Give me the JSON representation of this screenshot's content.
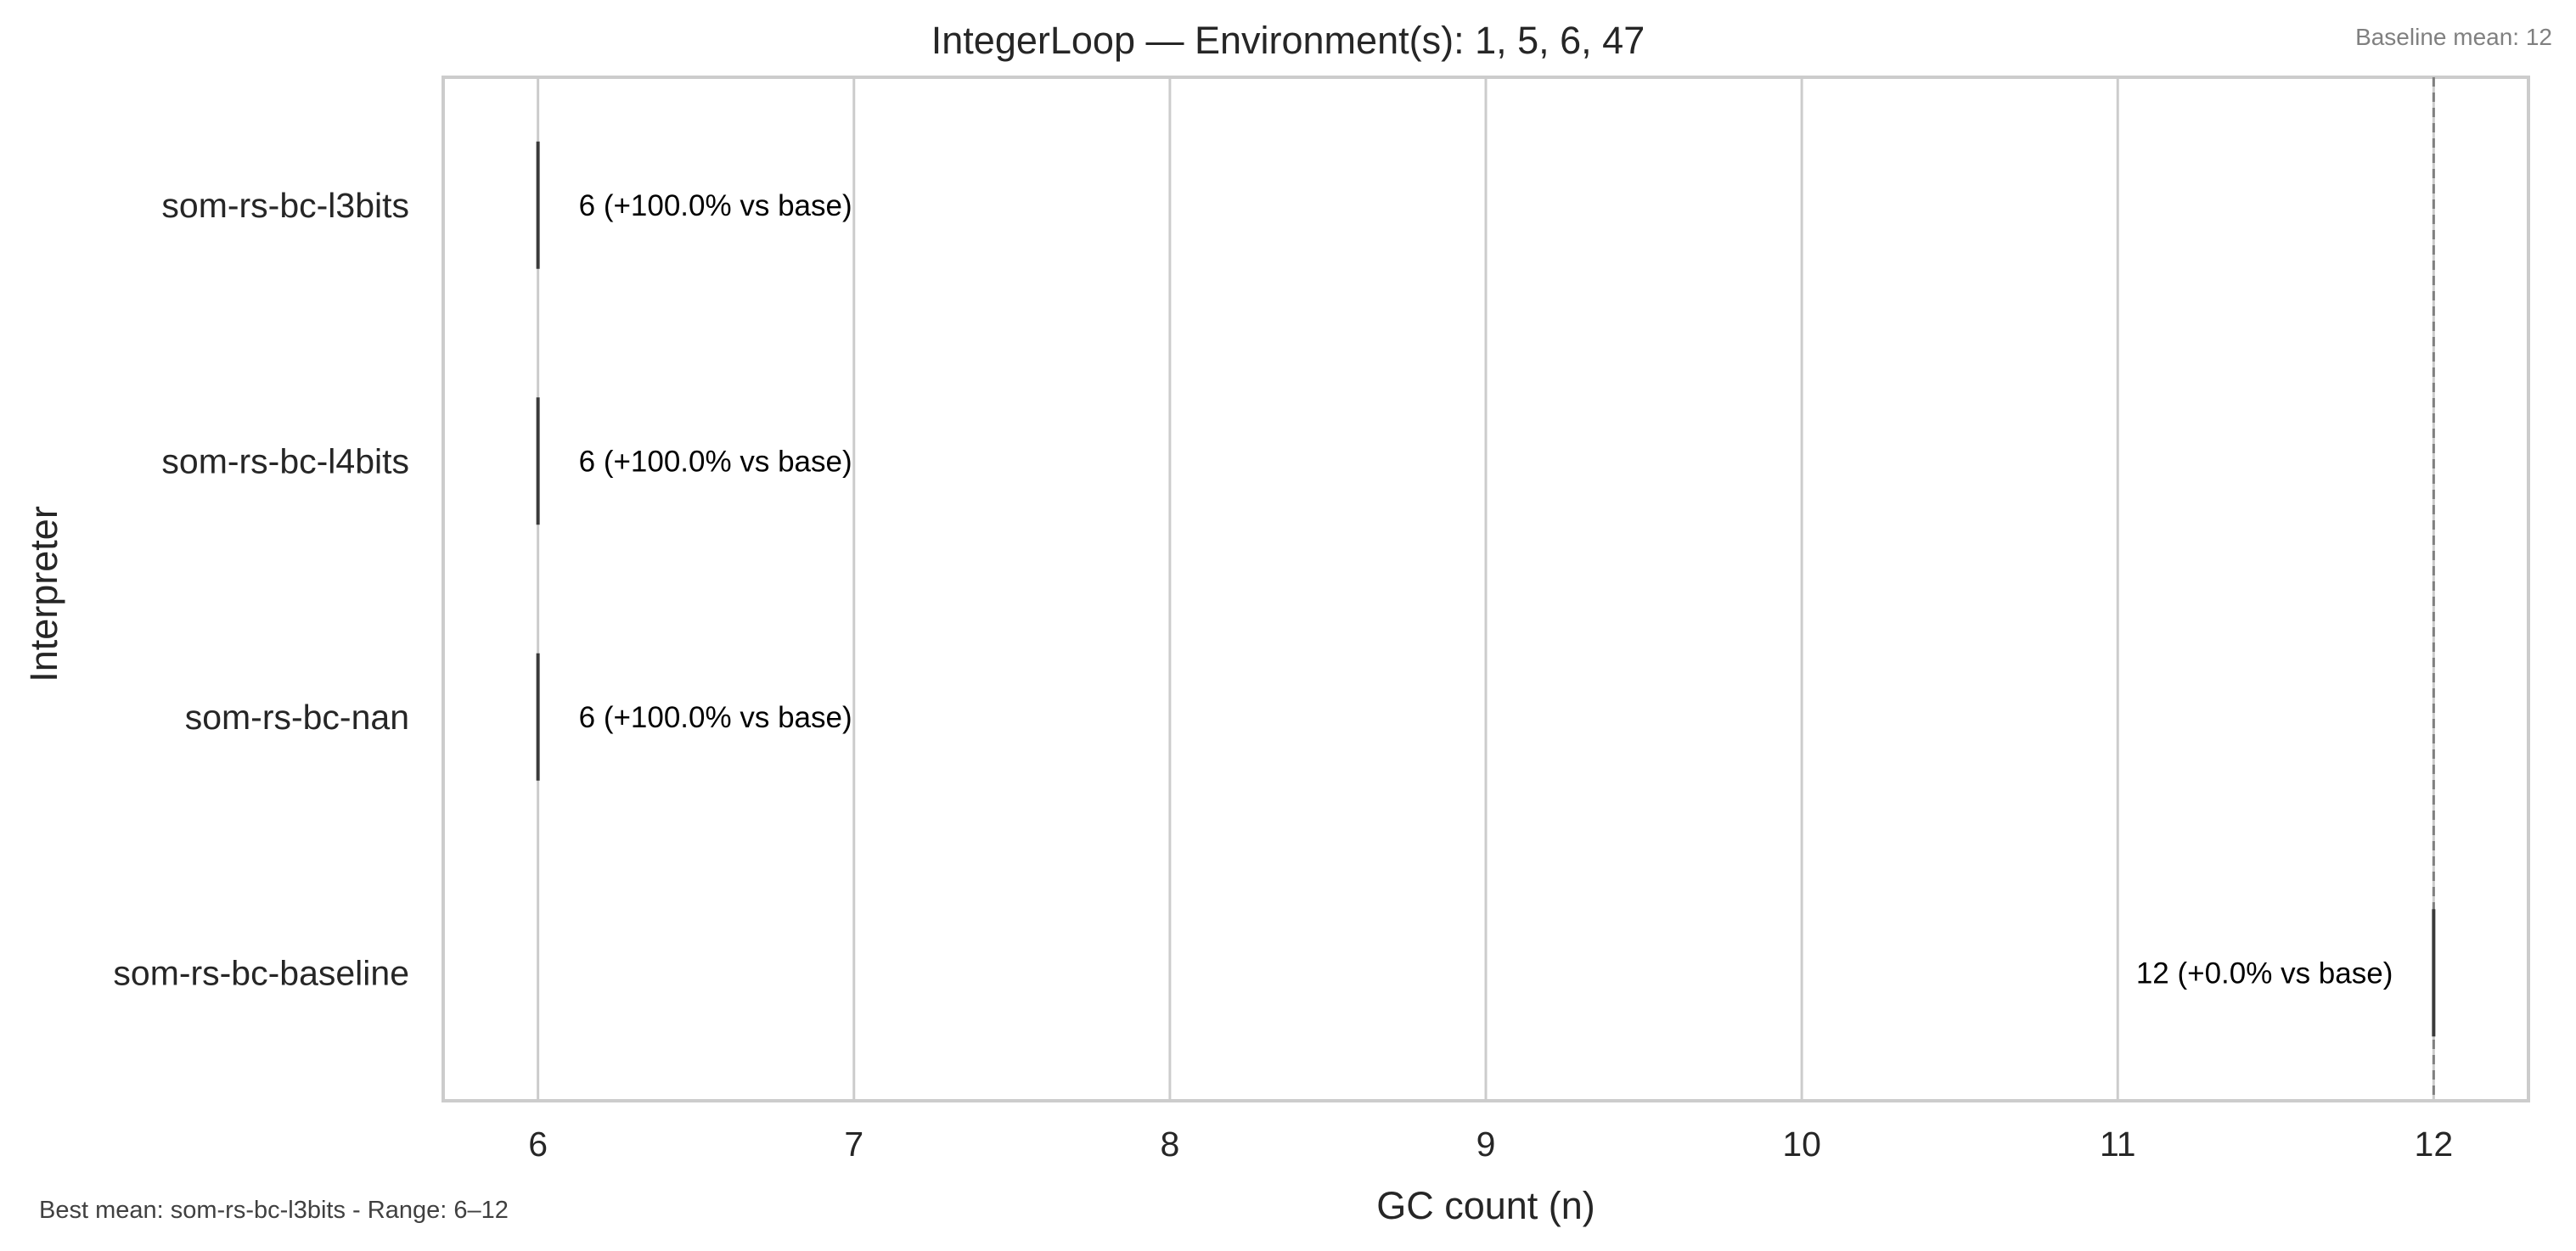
{
  "chart_data": {
    "type": "bar",
    "title": "IntegerLoop — Environment(s): 1, 5, 6, 47",
    "xlabel": "GC count (n)",
    "ylabel": "Interpreter",
    "orientation": "horizontal",
    "categories": [
      "som-rs-bc-l3bits",
      "som-rs-bc-l4bits",
      "som-rs-bc-nan",
      "som-rs-bc-baseline"
    ],
    "values": [
      6,
      6,
      6,
      12
    ],
    "data_labels": [
      "6  (+100.0% vs base)",
      "6  (+100.0% vs base)",
      "6  (+100.0% vs base)",
      "12  (+0.0% vs base)"
    ],
    "x_ticks": [
      "6",
      "7",
      "8",
      "9",
      "10",
      "11",
      "12"
    ],
    "xlim": [
      5.7,
      12.3
    ],
    "baseline_value": 12,
    "baseline_note": "Baseline mean: 12",
    "footer_note": "Best mean: som-rs-bc-l3bits - Range: 6–12",
    "grid": "vertical"
  },
  "colors": {
    "mark": "#3a3a3a",
    "grid": "#cccccc",
    "baseline": "#808080"
  }
}
